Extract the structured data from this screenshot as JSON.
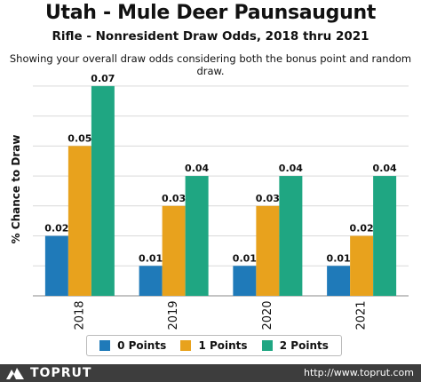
{
  "header": {
    "title": "Utah - Mule Deer Paunsaugunt",
    "subtitle": "Rifle - Nonresident Draw Odds, 2018 thru 2021",
    "description": "Showing your overall draw odds considering both the bonus point and random draw."
  },
  "chart_data": {
    "type": "bar",
    "title": "Utah - Mule Deer Paunsaugunt",
    "subtitle": "Rifle - Nonresident Draw Odds, 2018 thru 2021",
    "xlabel": "",
    "ylabel": "% Chance to Draw",
    "categories": [
      "2018",
      "2019",
      "2020",
      "2021"
    ],
    "series": [
      {
        "name": "0 Points",
        "color": "#1f7ab9",
        "values": [
          0.02,
          0.01,
          0.01,
          0.01
        ]
      },
      {
        "name": "1 Points",
        "color": "#e8a21d",
        "values": [
          0.05,
          0.03,
          0.03,
          0.02
        ]
      },
      {
        "name": "2 Points",
        "color": "#1fa682",
        "values": [
          0.07,
          0.04,
          0.04,
          0.04
        ]
      }
    ],
    "ylim": [
      0,
      0.07
    ],
    "y_tick_labels_shown": false,
    "grid": "horizontal",
    "legend_position": "bottom"
  },
  "footer": {
    "brand": "TOPRUT",
    "url": "http://www.toprut.com"
  }
}
